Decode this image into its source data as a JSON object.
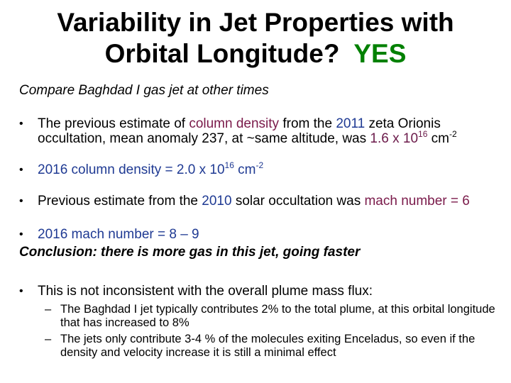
{
  "colors": {
    "highlight": "#1f3a93",
    "maroon": "#7a1a4a",
    "yes_green": "#008000"
  },
  "title": {
    "line1": "Variability in Jet Properties with",
    "line2": "Orbital Longitude?",
    "yes": "YES"
  },
  "subtitle": "Compare Baghdad I gas jet at other times",
  "bullet_glyph": "•",
  "dash_glyph": "–",
  "b1": {
    "t1": "The previous estimate of ",
    "t2": "column density",
    "t3": " from the ",
    "t4": "2011",
    "t5": " zeta Orionis occultation, mean anomaly 237, at ~same altitude, was ",
    "t6": "1.6 x 10",
    "t7": "16",
    "t8": " cm",
    "t9": "-2"
  },
  "b2": {
    "t1": "2016 column density = 2.0 x 10",
    "t2": "16",
    "t3": " cm",
    "t4": "-2"
  },
  "b3": {
    "t1": "Previous estimate from the ",
    "t2": "2010",
    "t3": " solar occultation was ",
    "t4": "mach number = 6"
  },
  "b4": {
    "t1": "2016 mach number = 8 – 9"
  },
  "conclusion": "Conclusion:  there is more gas in this jet, going faster",
  "b5": {
    "t1": "This is not inconsistent with the overall plume mass flux:"
  },
  "sub1": "The Baghdad I jet typically contributes 2% to the total plume, at this orbital longitude that has increased to 8%",
  "sub2": "The jets only contribute 3-4 % of the molecules exiting Enceladus, so even if the density and velocity increase it is still a minimal effect"
}
